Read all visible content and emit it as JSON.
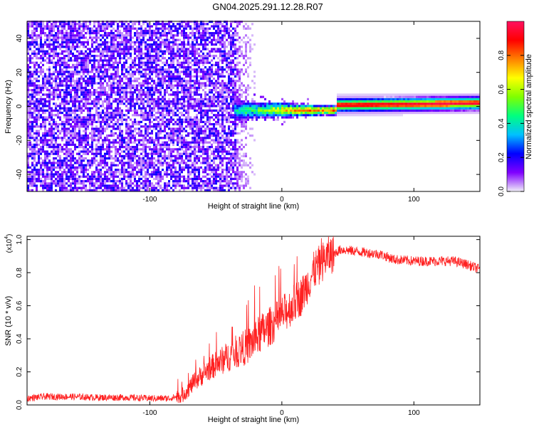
{
  "title": "GN04.2025.291.12.28.R07",
  "chart_data": [
    {
      "type": "heatmap",
      "xlabel": "Height of straight line (km)",
      "ylabel": "Frequency (Hz)",
      "xlim": [
        -193,
        150
      ],
      "ylim": [
        -50,
        50
      ],
      "xticks": [
        -100,
        0,
        100
      ],
      "yticks": [
        -40,
        -20,
        0,
        20,
        40
      ],
      "colorbar": {
        "label": "Normalized spectral amplitude",
        "range": [
          0,
          1
        ],
        "ticks": [
          0.0,
          0.2,
          0.4,
          0.6,
          0.8
        ],
        "colormap": [
          "#f0eef8",
          "#8000ff",
          "#0000ff",
          "#00c0ff",
          "#00ff80",
          "#80ff00",
          "#ffff00",
          "#ff8000",
          "#ff0000",
          "#ff1060"
        ]
      },
      "regions": [
        {
          "x": [
            -193,
            -35
          ],
          "description_level": "noise",
          "amplitude": [
            0.0,
            0.2
          ]
        },
        {
          "x": [
            -35,
            -20
          ],
          "description_level": "fading-noise",
          "amplitude": [
            0.0,
            0.1
          ]
        },
        {
          "x": [
            -35,
            40
          ],
          "center_hz": -3,
          "amplitude_peak": 0.8
        },
        {
          "x": [
            40,
            150
          ],
          "center_hz": 0,
          "amplitude_peak": 1.0
        }
      ]
    },
    {
      "type": "line",
      "xlabel": "Height of straight line (km)",
      "ylabel": "SNR (10 * v/v)",
      "yscale_label": "(x10",
      "yscale_exp": "4",
      "yscale_close": ")",
      "xlim": [
        -193,
        150
      ],
      "ylim": [
        0,
        1.02
      ],
      "xticks": [
        -100,
        0,
        100
      ],
      "yticks": [
        "0.0",
        "0.2",
        "0.4",
        "0.6",
        "0.8",
        "1.0"
      ],
      "series": [
        {
          "color": "#ff2020",
          "x": [
            -193,
            -180,
            -160,
            -140,
            -120,
            -100,
            -85,
            -75,
            -65,
            -55,
            -45,
            -35,
            -25,
            -15,
            -5,
            5,
            15,
            25,
            35,
            45,
            55,
            65,
            75,
            85,
            100,
            115,
            130,
            140,
            150
          ],
          "y": [
            0.04,
            0.05,
            0.05,
            0.045,
            0.045,
            0.04,
            0.04,
            0.06,
            0.15,
            0.22,
            0.27,
            0.32,
            0.36,
            0.44,
            0.5,
            0.58,
            0.66,
            0.82,
            0.9,
            0.94,
            0.93,
            0.92,
            0.91,
            0.88,
            0.87,
            0.87,
            0.87,
            0.85,
            0.82
          ]
        }
      ]
    }
  ]
}
